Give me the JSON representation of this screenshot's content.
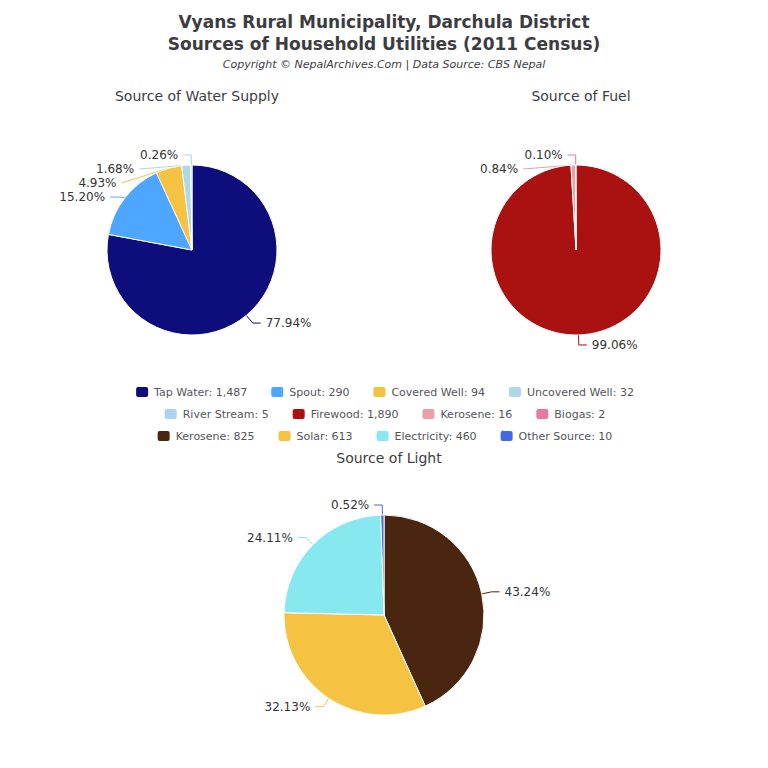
{
  "title": "Vyans Rural Municipality, Darchula District",
  "subtitle": "Sources of Household Utilities (2011 Census)",
  "annotations": [
    "Copyright © NepalArchives.Com | Data Source: CBS Nepal"
  ],
  "chart_data": [
    {
      "type": "pie",
      "title": "Source of Water Supply",
      "categories": [
        "Tap Water: 1,487",
        "Spout: 290",
        "Covered Well: 94",
        "Uncovered Well: 32",
        "River Stream: 5"
      ],
      "values": [
        77.94,
        15.2,
        4.93,
        1.68,
        0.26
      ],
      "value_labels": [
        "77.94%",
        "15.20%",
        "4.93%",
        "1.68%",
        "0.26%"
      ],
      "colors": [
        "#0d0d7b",
        "#4da6ff",
        "#f5c242",
        "#add8e6",
        "#b0d0f0"
      ],
      "data_labels": true,
      "legend": "center"
    },
    {
      "type": "pie",
      "title": "Source of Fuel",
      "categories": [
        "Firewood: 1,890",
        "Kerosene: 16",
        "Biogas: 2"
      ],
      "values": [
        99.06,
        0.84,
        0.1
      ],
      "value_labels": [
        "99.06%",
        "0.84%",
        "0.10%"
      ],
      "colors": [
        "#aa1111",
        "#e8a0a8",
        "#e878a0"
      ],
      "data_labels": true,
      "legend": "center"
    },
    {
      "type": "pie",
      "title": "Source of Light",
      "categories": [
        "Kerosene: 825",
        "Solar: 613",
        "Electricity: 460",
        "Other Source: 10"
      ],
      "values": [
        43.24,
        32.13,
        24.11,
        0.52
      ],
      "value_labels": [
        "43.24%",
        "32.13%",
        "24.11%",
        "0.52%"
      ],
      "colors": [
        "#4a2510",
        "#f5c242",
        "#87e8f0",
        "#4169e1"
      ],
      "data_labels": true,
      "legend": "center"
    }
  ]
}
